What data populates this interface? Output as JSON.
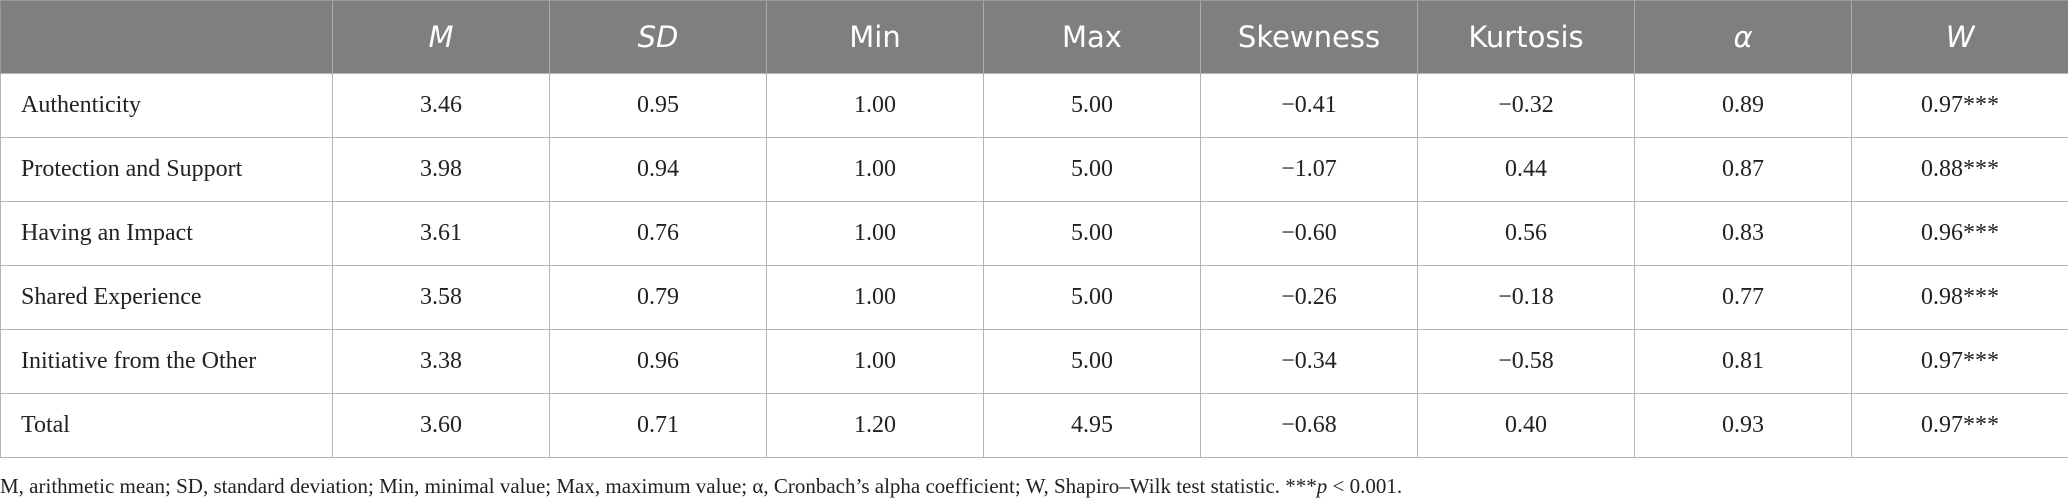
{
  "table": {
    "header": [
      "",
      "M",
      "SD",
      "Min",
      "Max",
      "Skewness",
      "Kurtosis",
      "α",
      "W"
    ],
    "rows": [
      [
        "Authenticity",
        "3.46",
        "0.95",
        "1.00",
        "5.00",
        "−0.41",
        "−0.32",
        "0.89",
        "0.97***"
      ],
      [
        "Protection and Support",
        "3.98",
        "0.94",
        "1.00",
        "5.00",
        "−1.07",
        "0.44",
        "0.87",
        "0.88***"
      ],
      [
        "Having an Impact",
        "3.61",
        "0.76",
        "1.00",
        "5.00",
        "−0.60",
        "0.56",
        "0.83",
        "0.96***"
      ],
      [
        "Shared Experience",
        "3.58",
        "0.79",
        "1.00",
        "5.00",
        "−0.26",
        "−0.18",
        "0.77",
        "0.98***"
      ],
      [
        "Initiative from the Other",
        "3.38",
        "0.96",
        "1.00",
        "5.00",
        "−0.34",
        "−0.58",
        "0.81",
        "0.97***"
      ],
      [
        "Total",
        "3.60",
        "0.71",
        "1.20",
        "4.95",
        "−0.68",
        "0.40",
        "0.93",
        "0.97***"
      ]
    ]
  },
  "footnote": [
    "M, arithmetic mean; SD, standard deviation; Min, minimal value; Max, maximum value; α, Cronbach’s alpha coefficient; W, Shapiro–Wilk test statistic. ***",
    "p",
    " < 0.001."
  ]
}
